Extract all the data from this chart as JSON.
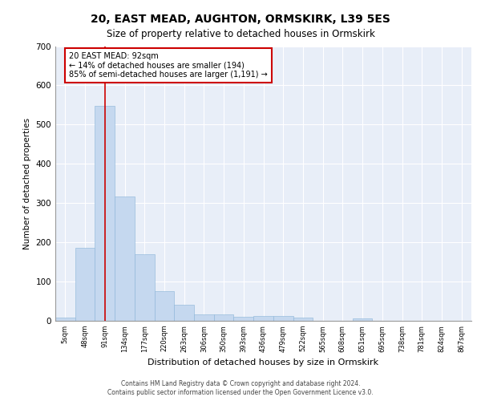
{
  "title1": "20, EAST MEAD, AUGHTON, ORMSKIRK, L39 5ES",
  "title2": "Size of property relative to detached houses in Ormskirk",
  "xlabel": "Distribution of detached houses by size in Ormskirk",
  "ylabel": "Number of detached properties",
  "footer1": "Contains HM Land Registry data © Crown copyright and database right 2024.",
  "footer2": "Contains public sector information licensed under the Open Government Licence v3.0.",
  "annotation_title": "20 EAST MEAD: 92sqm",
  "annotation_line2": "← 14% of detached houses are smaller (194)",
  "annotation_line3": "85% of semi-detached houses are larger (1,191) →",
  "bar_color": "#c5d8ef",
  "bar_edge_color": "#8ab4d8",
  "marker_line_color": "#cc0000",
  "annotation_box_color": "#ffffff",
  "annotation_box_edge": "#cc0000",
  "background_color": "#e8eef8",
  "ylim": [
    0,
    700
  ],
  "yticks": [
    0,
    100,
    200,
    300,
    400,
    500,
    600,
    700
  ],
  "categories": [
    "5sqm",
    "48sqm",
    "91sqm",
    "134sqm",
    "177sqm",
    "220sqm",
    "263sqm",
    "306sqm",
    "350sqm",
    "393sqm",
    "436sqm",
    "479sqm",
    "522sqm",
    "565sqm",
    "608sqm",
    "651sqm",
    "695sqm",
    "738sqm",
    "781sqm",
    "824sqm",
    "867sqm"
  ],
  "values": [
    8,
    186,
    548,
    316,
    169,
    76,
    40,
    17,
    17,
    11,
    12,
    12,
    8,
    0,
    0,
    6,
    0,
    0,
    0,
    0,
    0
  ],
  "marker_bin_index": 2,
  "figsize": [
    6.0,
    5.0
  ],
  "dpi": 100
}
